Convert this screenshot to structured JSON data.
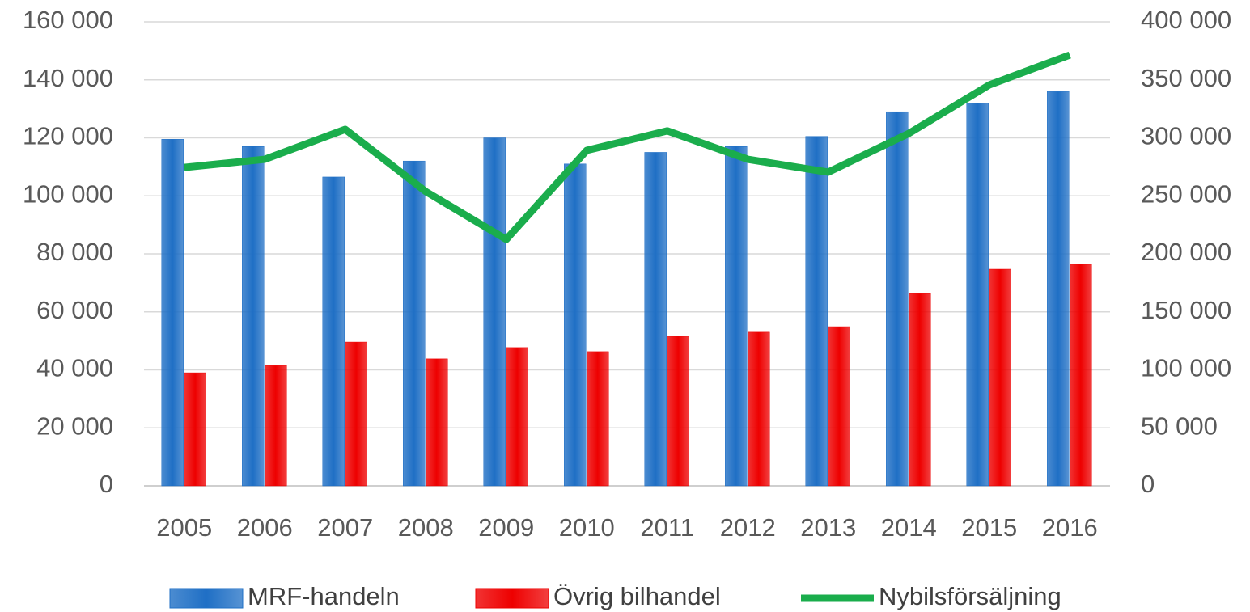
{
  "chart_data": {
    "type": "bar",
    "categories": [
      "2005",
      "2006",
      "2007",
      "2008",
      "2009",
      "2010",
      "2011",
      "2012",
      "2013",
      "2014",
      "2015",
      "2016"
    ],
    "series": [
      {
        "name": "MRF-handeln",
        "color": "#1f6fc5",
        "type": "bar",
        "values": [
          119500,
          117000,
          106500,
          112000,
          120000,
          111000,
          115000,
          117000,
          120500,
          129000,
          132000,
          136000
        ]
      },
      {
        "name": "Övrig bilhandel",
        "color": "#ee0000",
        "type": "bar",
        "values": [
          39000,
          41500,
          49600,
          43800,
          47700,
          46300,
          51600,
          53000,
          54900,
          66300,
          74700,
          76400
        ]
      },
      {
        "name": "Nybilsförsäljning",
        "color": "#1aad4c",
        "type": "line",
        "axis": "y2",
        "values": [
          274500,
          281500,
          307300,
          253700,
          212500,
          289200,
          306000,
          281500,
          270400,
          303800,
          345600,
          371400
        ]
      }
    ],
    "ylim": [
      0,
      160000
    ],
    "yticks": [
      0,
      {
        "value": 20000,
        "label": "20 000"
      },
      {
        "value": 40000,
        "label": "40 000"
      },
      {
        "value": 60000,
        "label": "60 000"
      },
      {
        "value": 80000,
        "label": "80 000"
      },
      {
        "value": 100000,
        "label": "100 000"
      },
      {
        "value": 120000,
        "label": "120 000"
      },
      {
        "value": 140000,
        "label": "140 000"
      },
      {
        "value": 160000,
        "label": "160 000"
      }
    ],
    "y2lim": [
      0,
      400000
    ],
    "y2ticks": [
      0,
      {
        "value": 50000,
        "label": "50 000"
      },
      {
        "value": 100000,
        "label": "100 000"
      },
      {
        "value": 150000,
        "label": "150 000"
      },
      {
        "value": 200000,
        "label": "200 000"
      },
      {
        "value": 250000,
        "label": "250 000"
      },
      {
        "value": 300000,
        "label": "300 000"
      },
      {
        "value": 350000,
        "label": "350 000"
      },
      {
        "value": 400000,
        "label": "400 000"
      }
    ],
    "grid": true,
    "legend": "bottom"
  }
}
